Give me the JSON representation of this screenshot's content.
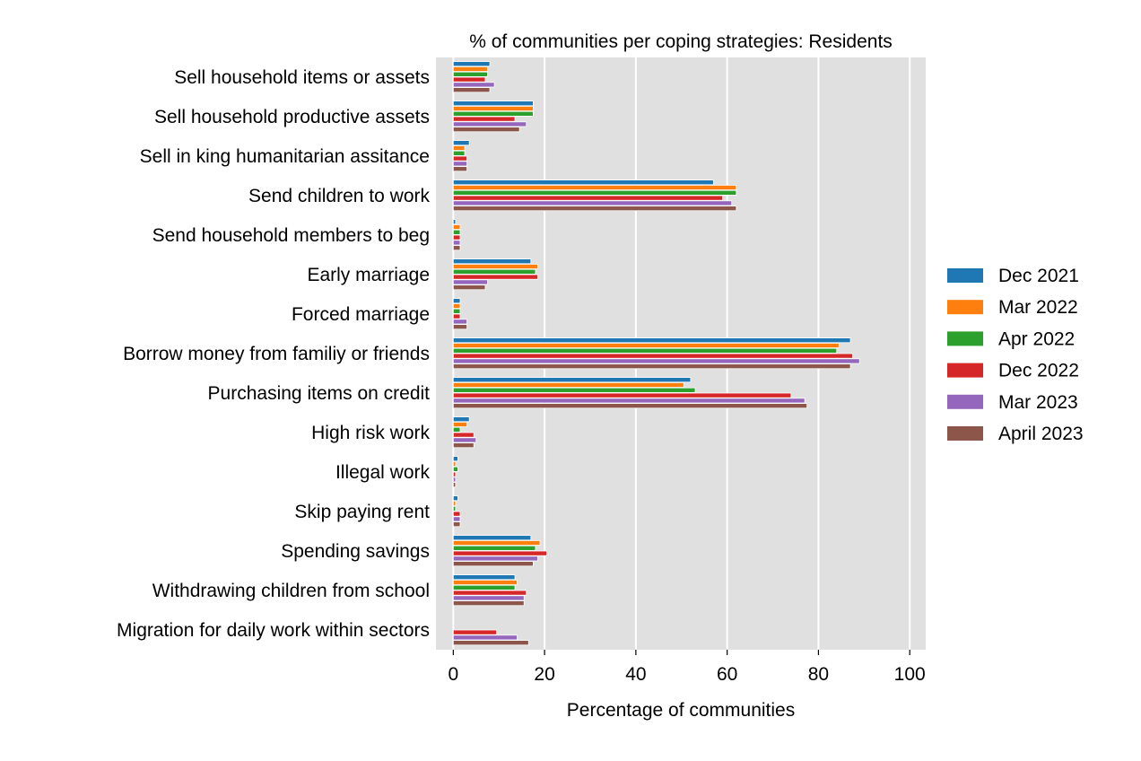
{
  "chart_data": {
    "type": "bar",
    "orientation": "horizontal",
    "title": "% of communities per coping strategies: Residents",
    "xlabel": "Percentage of communities",
    "ylabel": "",
    "xlim": [
      -3.8,
      103.5
    ],
    "xticks": [
      0,
      20,
      40,
      60,
      80,
      100
    ],
    "grid": true,
    "legend_position": "right",
    "categories": [
      "Sell household items or assets",
      "Sell household productive assets",
      "Sell in king humanitarian assitance",
      "Send children to work",
      "Send household members to beg",
      "Early marriage",
      "Forced marriage",
      "Borrow money from familiy or friends",
      "Purchasing items on credit",
      "High risk work",
      "Illegal work",
      "Skip paying rent",
      "Spending savings",
      "Withdrawing children from school",
      "Migration for daily work within sectors"
    ],
    "series": [
      {
        "name": "Dec 2021",
        "color": "#1f77b4",
        "values": [
          8,
          17.5,
          3.5,
          57,
          0.5,
          17,
          1.5,
          87,
          52,
          3.5,
          1,
          1,
          17,
          13.5,
          0
        ]
      },
      {
        "name": "Mar 2022",
        "color": "#ff7f0e",
        "values": [
          7.5,
          17.5,
          2.5,
          62,
          1.5,
          18.5,
          1.5,
          84.5,
          50.5,
          3,
          0.5,
          0.5,
          19,
          14,
          0
        ]
      },
      {
        "name": "Apr 2022",
        "color": "#2ca02c",
        "values": [
          7.5,
          17.5,
          2.5,
          62,
          1.5,
          18,
          1.5,
          84,
          53,
          1.5,
          1,
          0.5,
          18,
          13.5,
          0
        ]
      },
      {
        "name": "Dec 2022",
        "color": "#d62728",
        "values": [
          7,
          13.5,
          3,
          59,
          1.5,
          18.5,
          1.5,
          87.5,
          74,
          4.5,
          0.5,
          1.5,
          20.5,
          16,
          9.5
        ]
      },
      {
        "name": "Mar 2023",
        "color": "#9467bd",
        "values": [
          9,
          16,
          3,
          61,
          1.5,
          7.5,
          3,
          89,
          77,
          5,
          0.5,
          1.5,
          18.5,
          15.5,
          14
        ]
      },
      {
        "name": "April 2023",
        "color": "#8c564b",
        "values": [
          8,
          14.5,
          3,
          62,
          1.5,
          7,
          3,
          87,
          77.5,
          4.5,
          0.5,
          1.5,
          17.5,
          15.5,
          16.5
        ]
      }
    ]
  }
}
